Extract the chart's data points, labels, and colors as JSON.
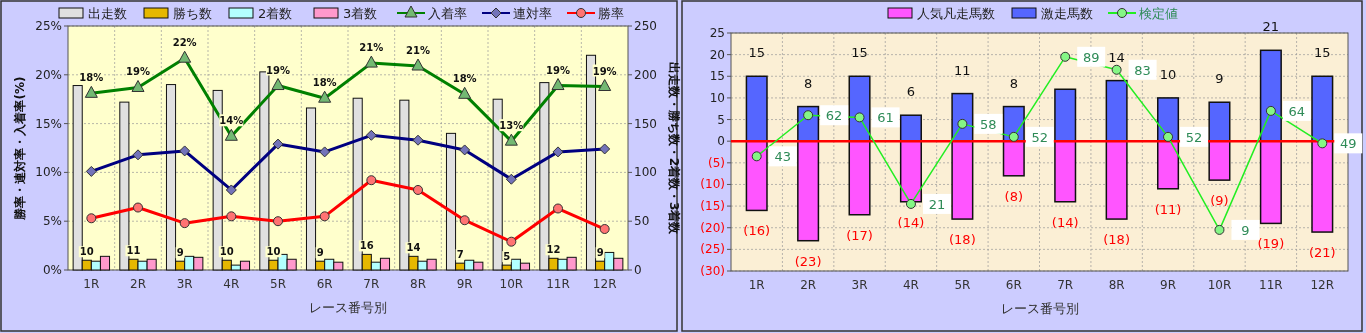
{
  "chart_data": [
    {
      "type": "bar",
      "categories": [
        "1R",
        "2R",
        "3R",
        "4R",
        "5R",
        "6R",
        "7R",
        "8R",
        "9R",
        "10R",
        "11R",
        "12R"
      ],
      "xlabel": "レース番号別",
      "ylabel": "勝率・連対率・入着率(%)",
      "y2label": "出走数・勝ち数・2着数・3着数",
      "ylim": [
        0,
        25
      ],
      "yticks": [
        {
          "value": 0,
          "label": "0%"
        },
        {
          "value": 5,
          "label": "5%"
        },
        {
          "value": 10,
          "label": "10%"
        },
        {
          "value": 15,
          "label": "15%"
        },
        {
          "value": 20,
          "label": "20%"
        },
        {
          "value": 25,
          "label": "25%"
        }
      ],
      "y2lim": [
        0,
        250
      ],
      "y2ticks": [
        0,
        50,
        100,
        150,
        200,
        250
      ],
      "grid": true,
      "legend": "top",
      "series": [
        {
          "name": "出走数",
          "axis": "y2",
          "color": "#e0e0e0",
          "values": [
            189,
            172,
            190,
            184,
            203,
            166,
            176,
            174,
            140,
            175,
            192,
            220
          ]
        },
        {
          "name": "勝ち数",
          "axis": "y2",
          "color": "#e6b800",
          "values": [
            10,
            11,
            9,
            10,
            10,
            9,
            16,
            14,
            7,
            5,
            12,
            9
          ],
          "value_labels": [
            "10",
            "11",
            "9",
            "10",
            "10",
            "9",
            "16",
            "14",
            "7",
            "5",
            "12",
            "9"
          ]
        },
        {
          "name": "2着数",
          "axis": "y2",
          "color": "#b3ffff",
          "values": [
            9,
            9,
            14,
            5,
            16,
            11,
            8,
            9,
            10,
            11,
            11,
            18
          ]
        },
        {
          "name": "3着数",
          "axis": "y2",
          "color": "#ff99cc",
          "values": [
            14,
            11,
            13,
            9,
            11,
            8,
            12,
            11,
            8,
            7,
            13,
            12
          ]
        },
        {
          "name": "入着率",
          "type": "line",
          "color": "#008000",
          "marker": "triangle",
          "values": [
            18.1,
            18.7,
            21.7,
            13.7,
            18.9,
            17.6,
            21.2,
            20.9,
            18.0,
            13.2,
            18.9,
            18.8
          ],
          "value_labels": [
            "18%",
            "19%",
            "22%",
            "14%",
            "19%",
            "18%",
            "21%",
            "21%",
            "18%",
            "13%",
            "19%",
            "19%"
          ]
        },
        {
          "name": "連対率",
          "type": "line",
          "color": "#000080",
          "marker": "diamond",
          "values": [
            10.1,
            11.8,
            12.2,
            8.2,
            12.9,
            12.1,
            13.8,
            13.3,
            12.3,
            9.3,
            12.1,
            12.4
          ]
        },
        {
          "name": "勝率",
          "type": "line",
          "color": "#ff0000",
          "marker": "circle",
          "values": [
            5.3,
            6.4,
            4.8,
            5.5,
            5.0,
            5.5,
            9.2,
            8.2,
            5.1,
            2.9,
            6.3,
            4.2
          ]
        }
      ]
    },
    {
      "type": "bar",
      "categories": [
        "1R",
        "2R",
        "3R",
        "4R",
        "5R",
        "6R",
        "7R",
        "8R",
        "9R",
        "10R",
        "11R",
        "12R"
      ],
      "xlabel": "レース番号別",
      "ylim": [
        -30,
        25
      ],
      "yticks": [
        25,
        20,
        15,
        10,
        5,
        0,
        {
          "value": -5,
          "label": "(5)"
        },
        {
          "value": -10,
          "label": "(10)"
        },
        {
          "value": -15,
          "label": "(15)"
        },
        {
          "value": -20,
          "label": "(20)"
        },
        {
          "value": -25,
          "label": "(25)"
        },
        {
          "value": -30,
          "label": "(30)"
        }
      ],
      "y2lim": [
        -10,
        100
      ],
      "stacked": true,
      "grid": true,
      "legend": "top",
      "ref_lines": [
        {
          "axis": "y",
          "value": 0,
          "color": "#ff0000"
        }
      ],
      "series": [
        {
          "name": "人気凡走馬数",
          "color": "#ff55ff",
          "values": [
            -16,
            -23,
            -17,
            -14,
            -18,
            -8,
            -14,
            -18,
            -11,
            -9,
            -19,
            -21
          ],
          "value_labels": [
            "(16)",
            "(23)",
            "(17)",
            "(14)",
            "(18)",
            "(8)",
            "(14)",
            "(18)",
            "(11)",
            "(9)",
            "(19)",
            "(21)"
          ]
        },
        {
          "name": "激走馬数",
          "color": "#5566ff",
          "values": [
            15,
            8,
            15,
            6,
            11,
            8,
            12,
            14,
            10,
            9,
            21,
            15
          ],
          "value_labels": [
            "15",
            "8",
            "15",
            "6",
            "11",
            "8",
            null,
            "14",
            "10",
            "9",
            "21",
            "15"
          ]
        },
        {
          "name": "検定値",
          "type": "line",
          "axis": "y2",
          "color": "#22ee22",
          "marker": "circle",
          "values": [
            43,
            62,
            61,
            21,
            58,
            52,
            89,
            83,
            52,
            9,
            64,
            49
          ],
          "value_labels": [
            "43",
            "62",
            "61",
            "21",
            "58",
            "52",
            "89",
            "83",
            "52",
            "9",
            "64",
            "49"
          ]
        }
      ]
    }
  ]
}
